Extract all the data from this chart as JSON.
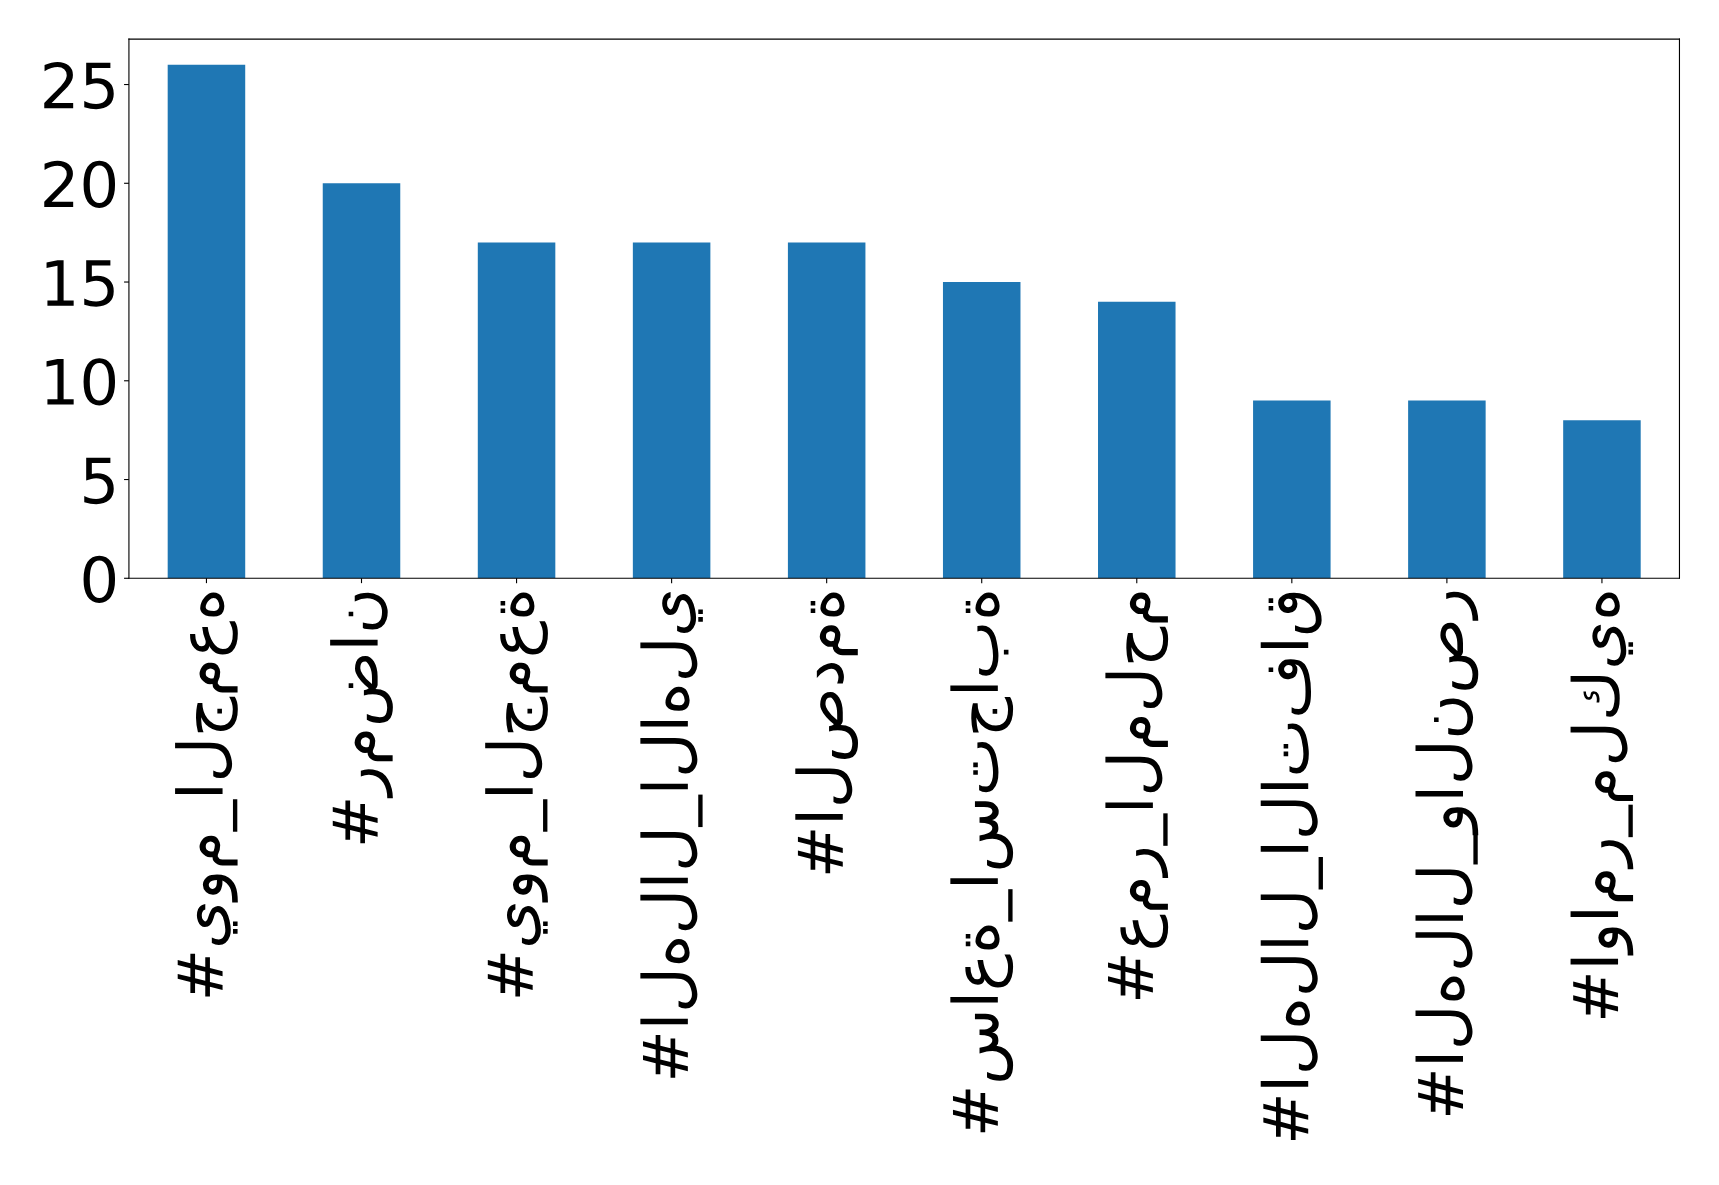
{
  "chart_data": {
    "type": "bar",
    "categories": [
      "#يوم_الجمعه",
      "#رمضان",
      "#يوم_الجمعة",
      "#الهلال_الاهلي",
      "#الصدمة",
      "#ساعة_استجابة",
      "#عمر_الملحم",
      "#الهلال_الاتفاق",
      "#الهلال_والنصر",
      "#اوامر_ملكيه"
    ],
    "values": [
      26,
      20,
      17,
      17,
      17,
      15,
      14,
      9,
      9,
      8
    ],
    "color": "#1f77b4",
    "ylim": [
      0,
      27.3
    ],
    "yticks": [
      0,
      5,
      10,
      15,
      20,
      25
    ],
    "grid": false,
    "legend": false
  }
}
